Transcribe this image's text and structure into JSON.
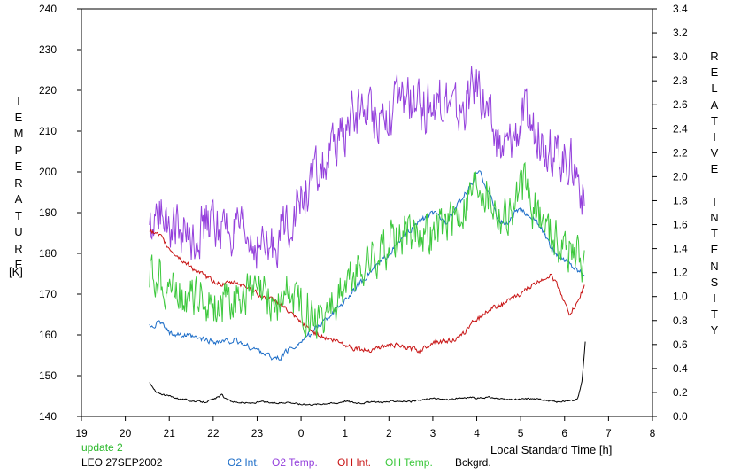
{
  "chart_data": {
    "type": "line",
    "y_left": {
      "label": "TEMPERATURE",
      "unit": "[K]",
      "range": [
        140,
        240
      ],
      "ticks": [
        140,
        150,
        160,
        170,
        180,
        190,
        200,
        210,
        220,
        230,
        240
      ]
    },
    "y_right": {
      "label": "RELATIVE INTENSITY",
      "range": [
        0,
        3.4
      ],
      "ticks": [
        "0.0",
        "0.2",
        "0.4",
        "0.6",
        "0.8",
        "1.0",
        "1.2",
        "1.4",
        "1.6",
        "1.8",
        "2.0",
        "2.2",
        "2.4",
        "2.6",
        "2.8",
        "3.0",
        "3.2",
        "3.4"
      ]
    },
    "x_axis": {
      "label": "Local Standard Time [h]",
      "ticklabels": [
        "19",
        "20",
        "21",
        "22",
        "23",
        "0",
        "1",
        "2",
        "3",
        "4",
        "5",
        "6",
        "7",
        "8"
      ]
    },
    "update_text": "update 2",
    "station_text": "LEO 27SEP2002",
    "grid": false,
    "series": [
      {
        "name": "O2 Int.",
        "axis": "right",
        "color": "#1e6ec8",
        "x": [
          20.55,
          20.8,
          21.0,
          21.3,
          21.6,
          21.9,
          22.2,
          22.5,
          22.8,
          23.1,
          23.3,
          23.5,
          23.7,
          24.0,
          24.3,
          24.6,
          24.9,
          25.2,
          25.5,
          25.8,
          26.1,
          26.4,
          26.7,
          27.0,
          27.3,
          27.6,
          27.9,
          28.05,
          28.3,
          28.5,
          28.7,
          28.9,
          29.1,
          29.3,
          29.5,
          29.7,
          29.9,
          30.1,
          30.3,
          30.45
        ],
        "y": [
          0.75,
          0.78,
          0.7,
          0.68,
          0.65,
          0.63,
          0.62,
          0.63,
          0.58,
          0.54,
          0.5,
          0.48,
          0.55,
          0.62,
          0.72,
          0.82,
          0.93,
          1.05,
          1.18,
          1.28,
          1.4,
          1.52,
          1.63,
          1.7,
          1.62,
          1.78,
          1.95,
          2.05,
          1.85,
          1.63,
          1.6,
          1.72,
          1.7,
          1.65,
          1.55,
          1.4,
          1.33,
          1.28,
          1.22,
          1.2
        ]
      },
      {
        "name": "O2 Temp.",
        "axis": "left",
        "color": "#9440dc",
        "x": [
          20.55,
          20.8,
          21.0,
          21.3,
          21.6,
          21.9,
          22.2,
          22.5,
          22.8,
          23.1,
          23.3,
          23.5,
          23.7,
          24.0,
          24.3,
          24.6,
          24.9,
          25.2,
          25.5,
          25.8,
          26.1,
          26.4,
          26.7,
          27.0,
          27.3,
          27.6,
          27.9,
          28.05,
          28.3,
          28.5,
          28.7,
          28.9,
          29.1,
          29.3,
          29.5,
          29.7,
          29.9,
          30.1,
          30.3,
          30.45
        ],
        "y": [
          185,
          192,
          188,
          184,
          185,
          188,
          186,
          185,
          183,
          182,
          180,
          185,
          188,
          193,
          198,
          202,
          208,
          214,
          216,
          214,
          216,
          218,
          215,
          217,
          218,
          214,
          220,
          222,
          212,
          205,
          206,
          210,
          213,
          211,
          208,
          205,
          204,
          203,
          200,
          192
        ]
      },
      {
        "name": "OH Int.",
        "axis": "right",
        "color": "#c81414",
        "x": [
          20.55,
          20.8,
          21.0,
          21.3,
          21.6,
          21.9,
          22.2,
          22.5,
          22.8,
          23.1,
          23.3,
          23.5,
          23.7,
          24.0,
          24.3,
          24.6,
          24.9,
          25.2,
          25.5,
          25.8,
          26.1,
          26.4,
          26.7,
          27.0,
          27.3,
          27.6,
          27.9,
          28.05,
          28.3,
          28.5,
          28.7,
          28.9,
          29.1,
          29.3,
          29.5,
          29.7,
          29.9,
          30.1,
          30.3,
          30.45
        ],
        "y": [
          1.55,
          1.5,
          1.4,
          1.3,
          1.22,
          1.15,
          1.1,
          1.12,
          1.08,
          1.0,
          0.98,
          0.95,
          0.88,
          0.78,
          0.7,
          0.65,
          0.62,
          0.57,
          0.55,
          0.58,
          0.6,
          0.57,
          0.55,
          0.62,
          0.63,
          0.65,
          0.78,
          0.82,
          0.9,
          0.92,
          0.96,
          1.0,
          1.05,
          1.1,
          1.15,
          1.18,
          1.05,
          0.85,
          0.95,
          1.1
        ]
      },
      {
        "name": "OH Temp.",
        "axis": "left",
        "color": "#3cc83c",
        "x": [
          20.55,
          20.8,
          21.0,
          21.3,
          21.6,
          21.9,
          22.2,
          22.5,
          22.8,
          23.1,
          23.3,
          23.5,
          23.7,
          24.0,
          24.3,
          24.6,
          24.9,
          25.2,
          25.5,
          25.8,
          26.1,
          26.4,
          26.7,
          27.0,
          27.3,
          27.6,
          27.9,
          28.05,
          28.3,
          28.5,
          28.7,
          28.9,
          29.1,
          29.3,
          29.5,
          29.7,
          29.9,
          30.1,
          30.3,
          30.45
        ],
        "y": [
          175,
          174,
          172,
          170,
          169,
          168,
          167,
          169,
          170,
          169,
          168,
          167,
          170,
          168,
          165,
          166,
          170,
          174,
          178,
          180,
          183,
          185,
          186,
          184,
          188,
          190,
          196,
          198,
          194,
          190,
          189,
          193,
          196,
          191,
          188,
          185,
          183,
          181,
          180,
          178
        ]
      },
      {
        "name": "Bckgrd.",
        "axis": "right",
        "color": "#000000",
        "x": [
          20.55,
          20.7,
          20.9,
          21.2,
          21.5,
          21.8,
          22.0,
          22.2,
          22.3,
          22.5,
          22.8,
          23.1,
          23.4,
          23.7,
          24.0,
          24.3,
          24.6,
          24.8,
          25.0,
          25.3,
          25.6,
          25.9,
          26.2,
          26.5,
          26.8,
          27.0,
          27.3,
          27.6,
          27.8,
          28.0,
          28.3,
          28.6,
          28.9,
          29.2,
          29.5,
          29.8,
          30.1,
          30.2,
          30.3,
          30.4,
          30.47
        ],
        "y": [
          0.28,
          0.2,
          0.18,
          0.15,
          0.13,
          0.12,
          0.14,
          0.18,
          0.14,
          0.12,
          0.11,
          0.12,
          0.11,
          0.12,
          0.1,
          0.1,
          0.11,
          0.11,
          0.13,
          0.11,
          0.12,
          0.12,
          0.13,
          0.12,
          0.14,
          0.15,
          0.14,
          0.15,
          0.16,
          0.15,
          0.16,
          0.14,
          0.14,
          0.15,
          0.14,
          0.12,
          0.13,
          0.13,
          0.15,
          0.3,
          0.62
        ]
      }
    ]
  }
}
